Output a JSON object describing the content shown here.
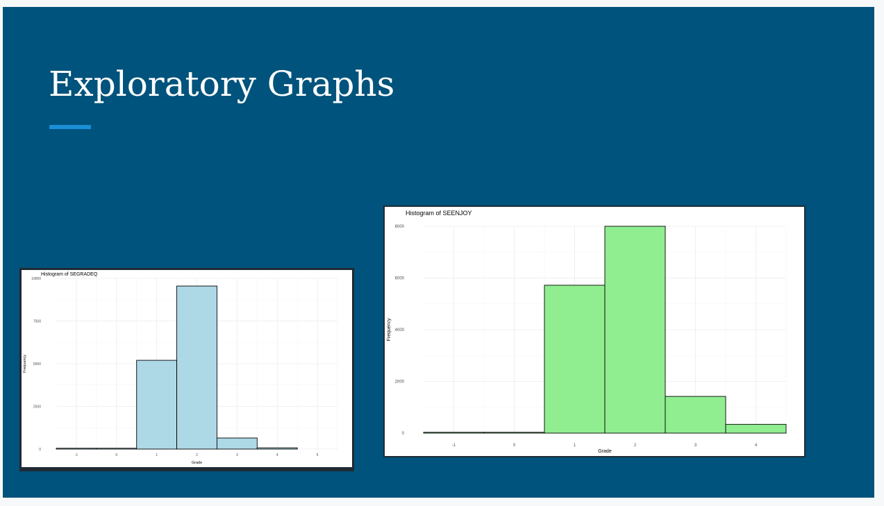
{
  "slide": {
    "title": "Exploratory Graphs",
    "background_color": "#00537c",
    "accent_color": "#1a8fd6"
  },
  "chart_data": [
    {
      "type": "bar",
      "title": "Histogram of SEGRADEQ",
      "xlabel": "Grade",
      "ylabel": "Frequency",
      "categories": [
        "-1",
        "0",
        "1",
        "2",
        "3",
        "4",
        "5"
      ],
      "values": [
        25,
        25,
        5200,
        9550,
        650,
        75,
        0
      ],
      "x_ticks": [
        "-1",
        "0",
        "1",
        "2",
        "3",
        "4",
        "5"
      ],
      "y_ticks": [
        0,
        2500,
        5000,
        7500,
        10000
      ],
      "ylim": [
        0,
        10000
      ],
      "bar_color": "#add8e6",
      "grid": true
    },
    {
      "type": "bar",
      "title": "Histogram of SEENJOY",
      "xlabel": "Grade",
      "ylabel": "Frequency",
      "categories": [
        "-1",
        "0",
        "1",
        "2",
        "3",
        "4"
      ],
      "values": [
        30,
        30,
        5720,
        8000,
        1420,
        340
      ],
      "x_ticks": [
        "-1",
        "0",
        "1",
        "2",
        "3",
        "4"
      ],
      "y_ticks": [
        0,
        2000,
        4000,
        6000,
        8000
      ],
      "ylim": [
        0,
        8000
      ],
      "bar_color": "#90ee90",
      "grid": true
    }
  ]
}
